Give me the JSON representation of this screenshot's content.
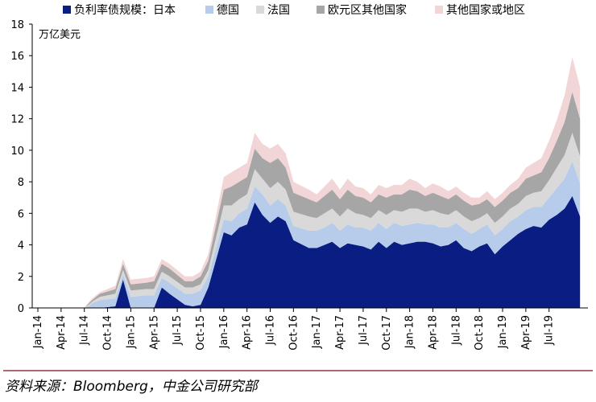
{
  "chart_data": {
    "type": "area",
    "stacked": true,
    "unit_label": "万亿美元",
    "source": "资料来源：Bloomberg，中金公司研究部",
    "ylim": [
      0,
      18
    ],
    "yticks": [
      0,
      2,
      4,
      6,
      8,
      10,
      12,
      14,
      16,
      18
    ],
    "xticks": [
      "Jan-14",
      "Apr-14",
      "Jul-14",
      "Oct-14",
      "Jan-15",
      "Apr-15",
      "Jul-15",
      "Oct-15",
      "Jan-16",
      "Apr-16",
      "Jul-16",
      "Oct-16",
      "Jan-17",
      "Apr-17",
      "Jul-17",
      "Oct-17",
      "Jan-18",
      "Apr-18",
      "Jul-18",
      "Oct-18",
      "Jan-19",
      "Apr-19",
      "Jul-19"
    ],
    "x_months": [
      0,
      3,
      6,
      6.7,
      7,
      8,
      10,
      11,
      12,
      14,
      15,
      16,
      17,
      19,
      20,
      21,
      22,
      24,
      25,
      26,
      27,
      28,
      29,
      30,
      31,
      32,
      33,
      35,
      36,
      37,
      38,
      39,
      40,
      41,
      42,
      43,
      44,
      45,
      46,
      47,
      48,
      49,
      50,
      51,
      52,
      53,
      54,
      55,
      56,
      57,
      58,
      59,
      60,
      61,
      62,
      63,
      64,
      65,
      66,
      67,
      68,
      69,
      70
    ],
    "series": [
      {
        "name": "负利率债规模：日本",
        "color": "#0a1d82",
        "values": [
          0,
          0,
          0,
          0,
          0,
          0,
          0.1,
          1.8,
          0,
          0,
          0,
          1.3,
          0.9,
          0.2,
          0.1,
          0.2,
          1.3,
          4.8,
          4.6,
          5.1,
          5.3,
          6.7,
          5.9,
          5.4,
          5.8,
          5.5,
          4.3,
          3.8,
          3.8,
          4.0,
          4.2,
          3.8,
          4.1,
          4.0,
          3.9,
          3.7,
          4.2,
          3.8,
          4.2,
          4.0,
          4.1,
          4.2,
          4.2,
          4.1,
          3.9,
          4.0,
          4.3,
          3.8,
          3.6,
          3.9,
          4.1,
          3.4,
          3.9,
          4.3,
          4.7,
          5.0,
          5.2,
          5.1,
          5.6,
          5.9,
          6.3,
          7.1,
          5.8
        ]
      },
      {
        "name": "德国",
        "color": "#b7ccea",
        "values": [
          0,
          0,
          0,
          0.15,
          0.3,
          0.5,
          0.5,
          0.3,
          0.7,
          0.8,
          0.8,
          0.6,
          0.7,
          0.7,
          0.8,
          0.9,
          0.7,
          0.8,
          0.9,
          0.9,
          1.0,
          1.0,
          1.3,
          1.1,
          1.1,
          1.0,
          0.9,
          1.1,
          1.1,
          1.1,
          1.2,
          1.1,
          1.2,
          1.1,
          1.2,
          1.2,
          1.2,
          1.2,
          1.2,
          1.2,
          1.2,
          1.2,
          1.1,
          1.2,
          1.2,
          1.1,
          1.1,
          1.2,
          1.1,
          1.1,
          1.2,
          1.2,
          1.1,
          1.2,
          1.1,
          1.2,
          1.2,
          1.3,
          1.4,
          1.7,
          1.9,
          2.2,
          2.1
        ]
      },
      {
        "name": "法国",
        "color": "#d9d9d9",
        "values": [
          0,
          0,
          0,
          0.1,
          0.1,
          0.2,
          0.3,
          0.3,
          0.4,
          0.4,
          0.4,
          0.4,
          0.4,
          0.4,
          0.4,
          0.4,
          0.4,
          0.9,
          1.0,
          0.9,
          0.9,
          1.1,
          1.0,
          1.1,
          1.1,
          1.0,
          0.9,
          0.9,
          0.8,
          0.9,
          0.9,
          0.9,
          1.0,
          0.9,
          0.8,
          0.8,
          0.8,
          0.9,
          0.8,
          0.9,
          1.0,
          0.9,
          0.8,
          0.9,
          0.9,
          0.8,
          0.8,
          0.8,
          0.8,
          0.7,
          0.7,
          0.8,
          0.8,
          0.8,
          0.8,
          0.9,
          0.9,
          1.0,
          1.1,
          1.3,
          1.5,
          1.8,
          1.7
        ]
      },
      {
        "name": "欧元区其他国家",
        "color": "#a6a6a6",
        "values": [
          0,
          0,
          0,
          0.1,
          0.1,
          0.2,
          0.3,
          0.4,
          0.4,
          0.4,
          0.5,
          0.5,
          0.5,
          0.4,
          0.4,
          0.5,
          0.6,
          1.0,
          1.2,
          1.1,
          1.1,
          1.3,
          1.3,
          1.6,
          1.5,
          1.4,
          1.2,
          1.1,
          1.0,
          1.1,
          1.2,
          1.1,
          1.2,
          1.1,
          1.1,
          1.0,
          1.0,
          1.1,
          1.0,
          1.1,
          1.2,
          1.1,
          1.0,
          1.1,
          1.1,
          1.0,
          1.0,
          1.0,
          1.0,
          0.9,
          0.9,
          1.0,
          1.0,
          1.0,
          1.0,
          1.1,
          1.1,
          1.2,
          1.4,
          1.7,
          2.1,
          2.6,
          2.4
        ]
      },
      {
        "name": "其他国家或地区",
        "color": "#f2d5d6",
        "values": [
          0,
          0,
          0,
          0.1,
          0.1,
          0.1,
          0.2,
          0.3,
          0.3,
          0.3,
          0.3,
          0.3,
          0.3,
          0.3,
          0.3,
          0.3,
          0.4,
          0.8,
          0.9,
          0.9,
          0.9,
          1.0,
          0.9,
          0.9,
          0.9,
          0.9,
          0.7,
          0.6,
          0.5,
          0.6,
          0.7,
          0.6,
          0.7,
          0.6,
          0.6,
          0.5,
          0.6,
          0.6,
          0.6,
          0.6,
          0.7,
          0.6,
          0.5,
          0.6,
          0.6,
          0.5,
          0.5,
          0.5,
          0.5,
          0.4,
          0.5,
          0.5,
          0.5,
          0.5,
          0.6,
          0.7,
          0.8,
          0.9,
          1.1,
          1.3,
          1.7,
          2.2,
          2.0
        ]
      }
    ],
    "xlabel": "",
    "ylabel": "万亿美元",
    "legend_position": "top"
  }
}
